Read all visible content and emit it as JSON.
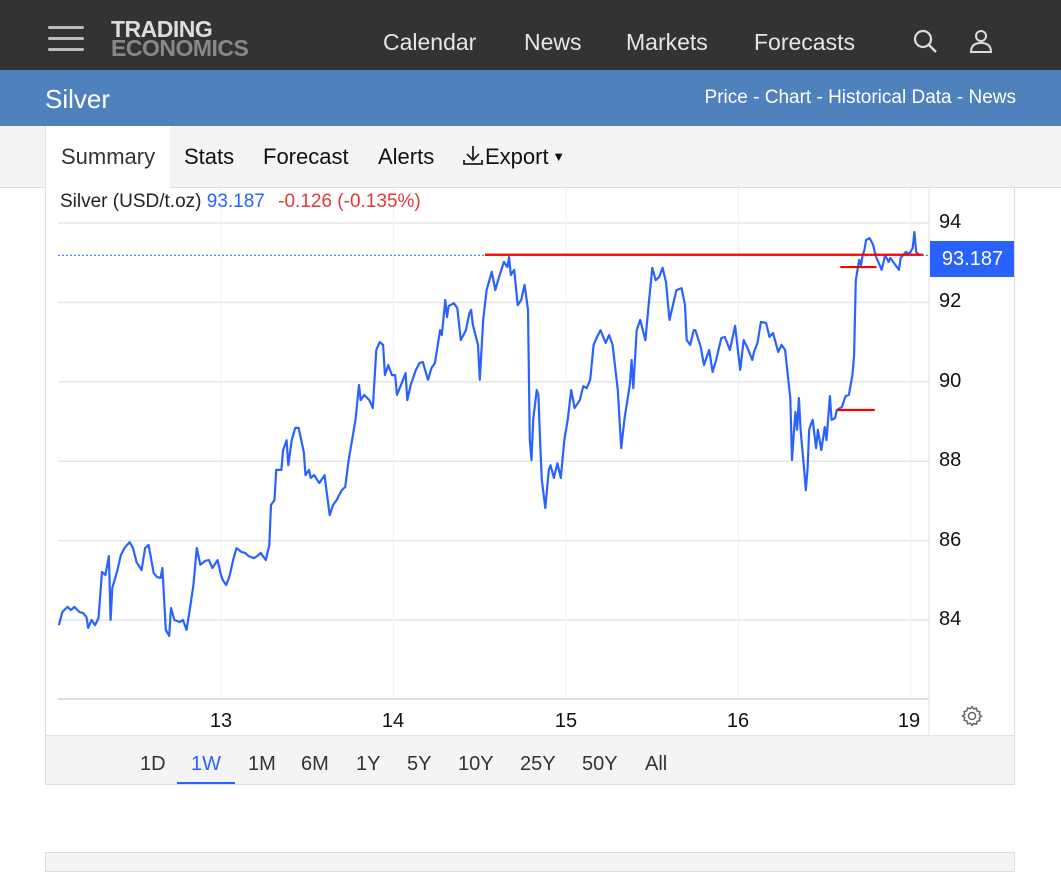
{
  "header": {
    "logo_line1": "TRADING",
    "logo_line2": "ECONOMICS",
    "nav": [
      "Calendar",
      "News",
      "Markets",
      "Forecasts"
    ],
    "icons": [
      "menu-icon",
      "search-icon",
      "user-icon"
    ]
  },
  "subheader": {
    "title": "Silver",
    "links": "Price - Chart - Historical Data - News"
  },
  "tabs": [
    "Summary",
    "Stats",
    "Forecast",
    "Alerts",
    "Export"
  ],
  "export_icon": "download-icon",
  "quote": {
    "name": "Silver (USD/t.oz)",
    "price": "93.187",
    "change": "-0.126 (-0.135%)"
  },
  "current_price_label": "93.187",
  "ranges": [
    "1D",
    "1W",
    "1M",
    "6M",
    "1Y",
    "5Y",
    "10Y",
    "25Y",
    "50Y",
    "All"
  ],
  "active_range": "1W",
  "colors": {
    "line": "#2962ff",
    "levels": "#ff0000",
    "header": "#333333",
    "subheader": "#4f82bd"
  },
  "chart_data": {
    "type": "line",
    "x_ticks": [
      "13",
      "14",
      "15",
      "16",
      "19"
    ],
    "y_ticks": [
      "94",
      "92",
      "90",
      "88",
      "86",
      "84"
    ],
    "ylim": [
      82,
      95
    ],
    "grid": true,
    "current_price": 93.187,
    "level_lines": [
      {
        "from": 14.53,
        "to": 19.07,
        "value": 93.2
      },
      {
        "from": 16.59,
        "to": 16.8,
        "value": 92.89
      },
      {
        "from": 16.57,
        "to": 16.79,
        "value": 89.29
      }
    ],
    "points": [
      [
        12.06,
        83.87
      ],
      [
        12.08,
        84.2
      ],
      [
        12.11,
        84.33
      ],
      [
        12.13,
        84.25
      ],
      [
        12.15,
        84.33
      ],
      [
        12.18,
        84.2
      ],
      [
        12.2,
        84.18
      ],
      [
        12.22,
        84.07
      ],
      [
        12.23,
        83.8
      ],
      [
        12.25,
        84.0
      ],
      [
        12.27,
        83.87
      ],
      [
        12.29,
        84.05
      ],
      [
        12.31,
        85.21
      ],
      [
        12.33,
        85.13
      ],
      [
        12.35,
        85.61
      ],
      [
        12.36,
        84.0
      ],
      [
        12.37,
        84.81
      ],
      [
        12.4,
        85.26
      ],
      [
        12.42,
        85.64
      ],
      [
        12.44,
        85.81
      ],
      [
        12.47,
        85.96
      ],
      [
        12.49,
        85.81
      ],
      [
        12.51,
        85.46
      ],
      [
        12.54,
        85.26
      ],
      [
        12.56,
        85.81
      ],
      [
        12.58,
        85.89
      ],
      [
        12.61,
        85.18
      ],
      [
        12.63,
        85.08
      ],
      [
        12.65,
        85.06
      ],
      [
        12.66,
        85.31
      ],
      [
        12.68,
        83.75
      ],
      [
        12.7,
        83.6
      ],
      [
        12.71,
        84.3
      ],
      [
        12.73,
        84.0
      ],
      [
        12.76,
        83.95
      ],
      [
        12.78,
        84.0
      ],
      [
        12.8,
        83.75
      ],
      [
        12.82,
        84.3
      ],
      [
        12.84,
        84.88
      ],
      [
        12.86,
        85.81
      ],
      [
        12.88,
        85.39
      ],
      [
        12.91,
        85.49
      ],
      [
        12.93,
        85.51
      ],
      [
        12.95,
        85.31
      ],
      [
        12.98,
        85.51
      ],
      [
        13.0,
        85.13
      ],
      [
        13.01,
        85.01
      ],
      [
        13.03,
        84.88
      ],
      [
        13.05,
        85.11
      ],
      [
        13.07,
        85.51
      ],
      [
        13.09,
        85.81
      ],
      [
        13.12,
        85.71
      ],
      [
        13.14,
        85.69
      ],
      [
        13.16,
        85.61
      ],
      [
        13.19,
        85.56
      ],
      [
        13.21,
        85.61
      ],
      [
        13.23,
        85.69
      ],
      [
        13.26,
        85.51
      ],
      [
        13.28,
        85.89
      ],
      [
        13.29,
        86.9
      ],
      [
        13.31,
        87.02
      ],
      [
        13.32,
        87.78
      ],
      [
        13.35,
        87.78
      ],
      [
        13.36,
        88.28
      ],
      [
        13.38,
        88.53
      ],
      [
        13.39,
        87.9
      ],
      [
        13.41,
        88.53
      ],
      [
        13.43,
        88.84
      ],
      [
        13.45,
        88.84
      ],
      [
        13.48,
        88.23
      ],
      [
        13.49,
        87.65
      ],
      [
        13.51,
        87.78
      ],
      [
        13.52,
        87.58
      ],
      [
        13.54,
        87.65
      ],
      [
        13.57,
        87.45
      ],
      [
        13.59,
        87.58
      ],
      [
        13.6,
        87.65
      ],
      [
        13.63,
        86.64
      ],
      [
        13.65,
        86.9
      ],
      [
        13.67,
        87.02
      ],
      [
        13.7,
        87.27
      ],
      [
        13.72,
        87.35
      ],
      [
        13.74,
        88.03
      ],
      [
        13.77,
        88.79
      ],
      [
        13.78,
        89.04
      ],
      [
        13.8,
        89.92
      ],
      [
        13.81,
        89.54
      ],
      [
        13.83,
        89.67
      ],
      [
        13.86,
        89.54
      ],
      [
        13.88,
        89.34
      ],
      [
        13.9,
        90.8
      ],
      [
        13.92,
        91.0
      ],
      [
        13.94,
        90.93
      ],
      [
        13.95,
        90.17
      ],
      [
        13.97,
        90.42
      ],
      [
        13.99,
        90.17
      ],
      [
        14.01,
        90.17
      ],
      [
        14.02,
        89.67
      ],
      [
        14.05,
        89.99
      ],
      [
        14.07,
        90.22
      ],
      [
        14.08,
        89.54
      ],
      [
        14.1,
        89.92
      ],
      [
        14.13,
        90.3
      ],
      [
        14.15,
        90.47
      ],
      [
        14.17,
        90.5
      ],
      [
        14.2,
        90.05
      ],
      [
        14.22,
        90.35
      ],
      [
        14.24,
        90.47
      ],
      [
        14.27,
        91.3
      ],
      [
        14.28,
        91.18
      ],
      [
        14.3,
        92.06
      ],
      [
        14.31,
        91.63
      ],
      [
        14.32,
        91.91
      ],
      [
        14.35,
        91.98
      ],
      [
        14.37,
        91.86
      ],
      [
        14.39,
        91.05
      ],
      [
        14.42,
        91.3
      ],
      [
        14.44,
        91.73
      ],
      [
        14.45,
        91.81
      ],
      [
        14.46,
        91.43
      ],
      [
        14.49,
        90.93
      ],
      [
        14.5,
        90.05
      ],
      [
        14.52,
        91.56
      ],
      [
        14.54,
        92.31
      ],
      [
        14.57,
        92.77
      ],
      [
        14.59,
        92.31
      ],
      [
        14.61,
        92.61
      ],
      [
        14.64,
        93.02
      ],
      [
        14.66,
        92.89
      ],
      [
        14.67,
        93.14
      ],
      [
        14.68,
        92.69
      ],
      [
        14.7,
        92.82
      ],
      [
        14.72,
        91.93
      ],
      [
        14.74,
        92.06
      ],
      [
        14.76,
        92.44
      ],
      [
        14.78,
        91.81
      ],
      [
        14.79,
        88.53
      ],
      [
        14.8,
        88.03
      ],
      [
        14.81,
        89.04
      ],
      [
        14.83,
        89.79
      ],
      [
        14.84,
        89.67
      ],
      [
        14.85,
        88.53
      ],
      [
        14.86,
        87.53
      ],
      [
        14.88,
        86.82
      ],
      [
        14.9,
        87.78
      ],
      [
        14.91,
        87.9
      ],
      [
        14.93,
        87.58
      ],
      [
        14.95,
        87.95
      ],
      [
        14.97,
        87.58
      ],
      [
        14.99,
        88.53
      ],
      [
        15.01,
        89.04
      ],
      [
        15.03,
        89.79
      ],
      [
        15.05,
        89.34
      ],
      [
        15.08,
        89.54
      ],
      [
        15.1,
        89.89
      ],
      [
        15.12,
        89.84
      ],
      [
        15.14,
        90.05
      ],
      [
        15.16,
        90.93
      ],
      [
        15.18,
        91.13
      ],
      [
        15.2,
        91.3
      ],
      [
        15.23,
        90.98
      ],
      [
        15.25,
        91.18
      ],
      [
        15.27,
        90.93
      ],
      [
        15.3,
        89.79
      ],
      [
        15.32,
        88.33
      ],
      [
        15.34,
        89.09
      ],
      [
        15.37,
        89.92
      ],
      [
        15.38,
        90.55
      ],
      [
        15.39,
        89.84
      ],
      [
        15.41,
        91.3
      ],
      [
        15.43,
        91.56
      ],
      [
        15.46,
        91.05
      ],
      [
        15.48,
        91.98
      ],
      [
        15.5,
        92.87
      ],
      [
        15.52,
        92.56
      ],
      [
        15.54,
        92.64
      ],
      [
        15.56,
        92.87
      ],
      [
        15.58,
        92.51
      ],
      [
        15.6,
        91.56
      ],
      [
        15.62,
        91.93
      ],
      [
        15.64,
        92.31
      ],
      [
        15.67,
        92.36
      ],
      [
        15.69,
        91.93
      ],
      [
        15.7,
        91.05
      ],
      [
        15.72,
        90.93
      ],
      [
        15.74,
        91.3
      ],
      [
        15.75,
        91.3
      ],
      [
        15.78,
        90.9
      ],
      [
        15.8,
        90.42
      ],
      [
        15.83,
        90.8
      ],
      [
        15.85,
        90.25
      ],
      [
        15.87,
        90.55
      ],
      [
        15.9,
        91.1
      ],
      [
        15.92,
        91.13
      ],
      [
        15.95,
        90.8
      ],
      [
        15.98,
        91.41
      ],
      [
        16.01,
        90.3
      ],
      [
        16.03,
        91.05
      ],
      [
        16.05,
        90.88
      ],
      [
        16.08,
        90.55
      ],
      [
        16.09,
        90.75
      ],
      [
        16.11,
        90.98
      ],
      [
        16.13,
        91.51
      ],
      [
        16.16,
        91.48
      ],
      [
        16.18,
        91.13
      ],
      [
        16.2,
        91.23
      ],
      [
        16.23,
        90.75
      ],
      [
        16.25,
        90.93
      ],
      [
        16.27,
        90.8
      ],
      [
        16.3,
        89.59
      ],
      [
        16.31,
        88.03
      ],
      [
        16.32,
        88.66
      ],
      [
        16.33,
        89.24
      ],
      [
        16.34,
        88.79
      ],
      [
        16.35,
        89.59
      ],
      [
        16.36,
        88.79
      ],
      [
        16.38,
        87.83
      ],
      [
        16.39,
        87.27
      ],
      [
        16.4,
        87.78
      ],
      [
        16.41,
        88.79
      ],
      [
        16.42,
        88.94
      ],
      [
        16.43,
        89.04
      ],
      [
        16.45,
        88.33
      ],
      [
        16.46,
        88.79
      ],
      [
        16.48,
        88.28
      ],
      [
        16.5,
        88.86
      ],
      [
        16.51,
        88.53
      ],
      [
        16.53,
        89.64
      ],
      [
        16.54,
        89.04
      ],
      [
        16.56,
        89.09
      ],
      [
        16.57,
        89.29
      ],
      [
        16.6,
        89.37
      ],
      [
        16.62,
        89.64
      ],
      [
        16.64,
        89.67
      ],
      [
        16.66,
        90.17
      ],
      [
        16.67,
        90.67
      ],
      [
        16.68,
        92.56
      ],
      [
        16.7,
        93.07
      ],
      [
        16.71,
        92.94
      ],
      [
        16.72,
        93.19
      ],
      [
        16.73,
        93.32
      ],
      [
        16.74,
        93.57
      ],
      [
        16.76,
        93.62
      ],
      [
        16.78,
        93.45
      ],
      [
        16.79,
        93.27
      ],
      [
        16.8,
        93.12
      ],
      [
        16.83,
        92.82
      ],
      [
        16.85,
        93.19
      ],
      [
        16.87,
        93.02
      ],
      [
        16.88,
        93.12
      ],
      [
        16.91,
        92.94
      ],
      [
        16.93,
        92.82
      ],
      [
        16.94,
        93.12
      ],
      [
        16.97,
        93.27
      ],
      [
        16.99,
        93.22
      ],
      [
        19.01,
        93.37
      ],
      [
        19.02,
        93.77
      ],
      [
        19.03,
        93.27
      ],
      [
        19.05,
        93.19
      ]
    ]
  }
}
